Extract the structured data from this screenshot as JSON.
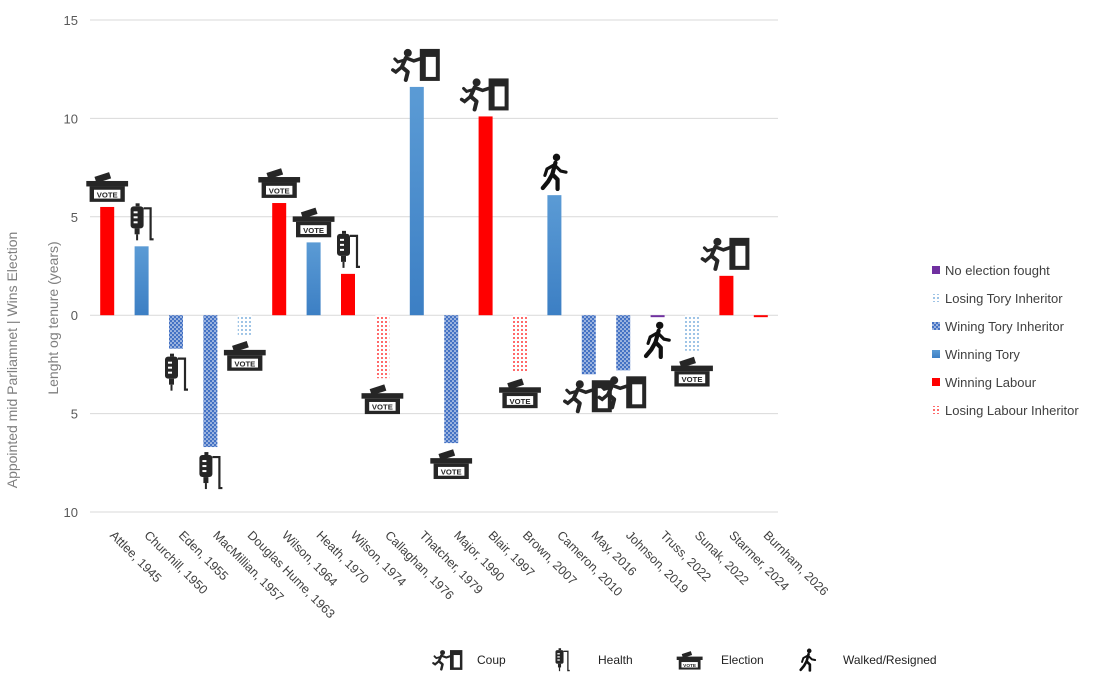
{
  "chart_data": {
    "type": "bar",
    "ylabel_outer": "Appointed mid Parliamnet    |    Wins Election",
    "ylabel": "Lenght og tenure (years)",
    "ylim": [
      -10,
      15
    ],
    "yticks": [
      {
        "value": 15,
        "label": "15"
      },
      {
        "value": 10,
        "label": "10"
      },
      {
        "value": 5,
        "label": "5"
      },
      {
        "value": 0,
        "label": "0"
      },
      {
        "value": -5,
        "label": "5"
      },
      {
        "value": -10,
        "label": "10"
      }
    ],
    "grid": true,
    "categories": [
      "Attlee, 1945",
      "Churchill, 1950",
      "Eden, 1955",
      "MacMillian, 1957",
      "Douglas Hume, 1963",
      "Wilson, 1964",
      "Heath, 1970",
      "Wilson, 1974",
      "Callaghan, 1976",
      "Thatcher, 1979",
      "Major, 1990",
      "Blair, 1997",
      "Brown, 2007",
      "Cameron, 2010",
      "May, 2016",
      "Johnson, 2019",
      "Truss, 2022",
      "Sunak, 2022",
      "Starmer, 2024",
      "Burnham, 2026"
    ],
    "values": [
      5.5,
      3.5,
      -1.7,
      -6.7,
      -1.0,
      5.7,
      3.7,
      2.1,
      -3.2,
      11.6,
      -6.5,
      10.1,
      -2.9,
      6.1,
      -3.0,
      -2.8,
      -0.1,
      -1.8,
      2.0,
      -0.1
    ],
    "category_series": [
      "Winning Labour",
      "Winning Tory",
      "Wining Tory Inheritor",
      "Wining Tory Inheritor",
      "Losing Tory Inheritor",
      "Winning Labour",
      "Winning Tory",
      "Winning Labour",
      "Losing Labour Inheritor",
      "Winning Tory",
      "Wining Tory Inheritor",
      "Winning Labour",
      "Losing Labour Inheritor",
      "Winning Tory",
      "Wining Tory Inheritor",
      "Wining Tory Inheritor",
      "No election fought",
      "Losing Tory Inheritor",
      "Winning Labour",
      "Winning Labour"
    ],
    "exit_icons": [
      "election",
      "health",
      "health",
      "health",
      "election",
      "election",
      "election",
      "health",
      "election",
      "coup",
      "election",
      "coup",
      "election",
      "walked",
      "coup",
      "coup",
      "walked",
      "election",
      "coup",
      ""
    ],
    "legend_position": "right",
    "legend": [
      {
        "name": "No election fought",
        "style": "solid",
        "color": "#7030A0"
      },
      {
        "name": "Losing Tory Inheritor",
        "style": "dotted",
        "color": "#5B9BD5"
      },
      {
        "name": "Wining Tory Inheritor",
        "style": "dotted-dense",
        "color": "#4472C4"
      },
      {
        "name": "Winning Tory",
        "style": "solid",
        "color": "#5B9BD5"
      },
      {
        "name": "Winning Labour",
        "style": "solid",
        "color": "#FF0000"
      },
      {
        "name": "Losing Labour Inheritor",
        "style": "dotted",
        "color": "#FF0000"
      }
    ],
    "icon_key": [
      {
        "icon": "coup",
        "label": "Coup"
      },
      {
        "icon": "health",
        "label": "Health"
      },
      {
        "icon": "election",
        "label": "Election"
      },
      {
        "icon": "walked",
        "label": "Walked/Resigned"
      }
    ]
  }
}
